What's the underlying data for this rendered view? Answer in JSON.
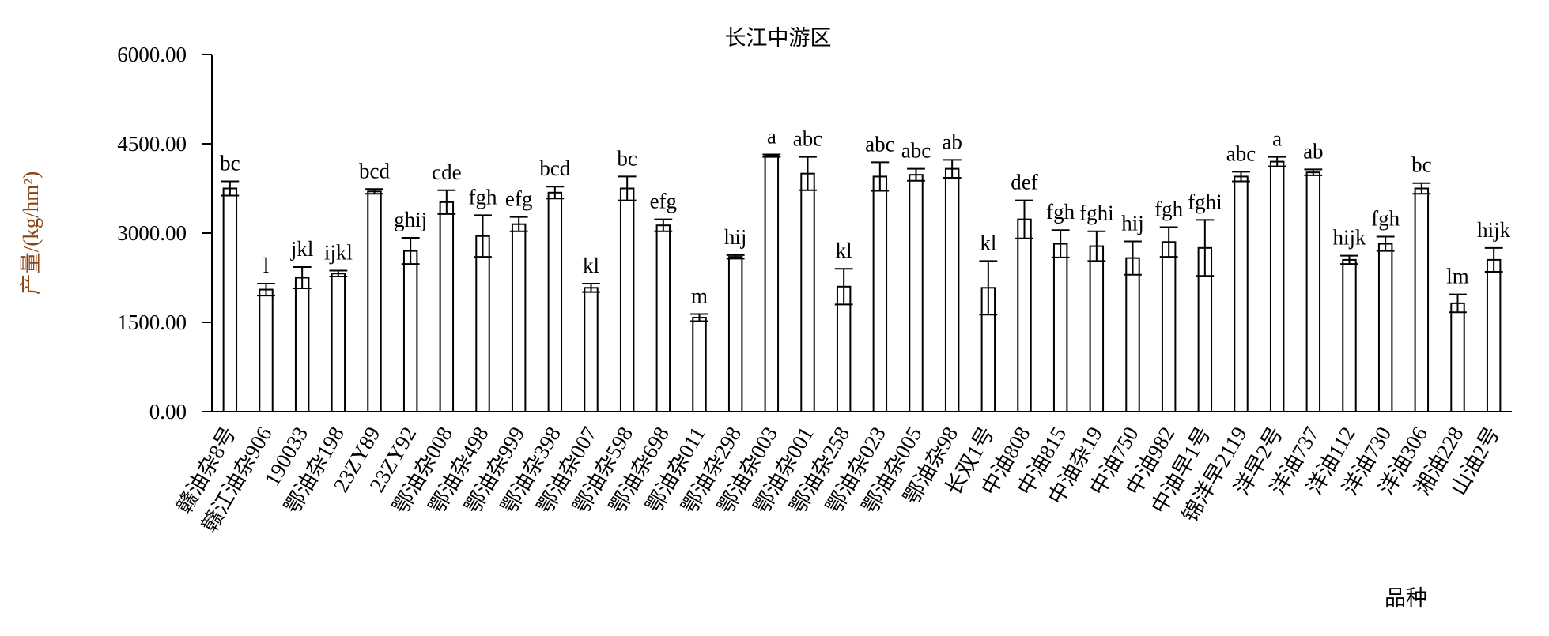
{
  "chart_data": {
    "type": "bar",
    "title": "长江中游区",
    "x_label": "品种",
    "y_label": "产量/(kg/hm²)",
    "categories": [
      "赣油杂8号",
      "赣江油杂906",
      "190033",
      "鄂油杂198",
      "23ZY89",
      "23ZY92",
      "鄂油杂008",
      "鄂油杂498",
      "鄂油杂999",
      "鄂油杂398",
      "鄂油杂007",
      "鄂油杂598",
      "鄂油杂698",
      "鄂油杂011",
      "鄂油杂298",
      "鄂油杂003",
      "鄂油杂001",
      "鄂油杂258",
      "鄂油杂023",
      "鄂油杂005",
      "鄂油杂98",
      "长双1号",
      "中油808",
      "中油815",
      "中油杂19",
      "中油750",
      "中油982",
      "中油早1号",
      "锦洋早2119",
      "洋早2号",
      "洋油737",
      "洋油112",
      "洋油730",
      "洋油306",
      "湘油228",
      "山油2号"
    ],
    "values": [
      3750,
      2050,
      2250,
      2320,
      3700,
      2700,
      3520,
      2950,
      3150,
      3680,
      2080,
      3750,
      3130,
      1580,
      2600,
      4300,
      4000,
      2100,
      3950,
      3980,
      4080,
      2080,
      3230,
      2820,
      2780,
      2580,
      2850,
      2750,
      3950,
      4200,
      4020,
      2550,
      2820,
      3750,
      1820,
      2550
    ],
    "errors": [
      120,
      100,
      180,
      50,
      40,
      220,
      200,
      350,
      120,
      100,
      70,
      200,
      100,
      60,
      30,
      20,
      280,
      300,
      240,
      100,
      150,
      450,
      320,
      230,
      250,
      280,
      250,
      470,
      80,
      80,
      50,
      70,
      120,
      90,
      150,
      200
    ],
    "letters": [
      "bc",
      "l",
      "jkl",
      "ijkl",
      "bcd",
      "ghij",
      "cde",
      "fgh",
      "efg",
      "bcd",
      "kl",
      "bc",
      "efg",
      "m",
      "hij",
      "a",
      "abc",
      "kl",
      "abc",
      "abc",
      "ab",
      "kl",
      "def",
      "fgh",
      "fghi",
      "hij",
      "fgh",
      "fghi",
      "abc",
      "a",
      "ab",
      "hijk",
      "fgh",
      "bc",
      "lm",
      "hijk"
    ],
    "color": "#ffffff",
    "edge_color": "#000000",
    "y_label_color": "#8b4513",
    "ylim": [
      0,
      6000
    ],
    "yticks": [
      {
        "value": 0,
        "label": "0.00"
      },
      {
        "value": 1500,
        "label": "1500.00"
      },
      {
        "value": 3000,
        "label": "3000.00"
      },
      {
        "value": 4500,
        "label": "4500.00"
      },
      {
        "value": 6000,
        "label": "6000.00"
      }
    ]
  }
}
